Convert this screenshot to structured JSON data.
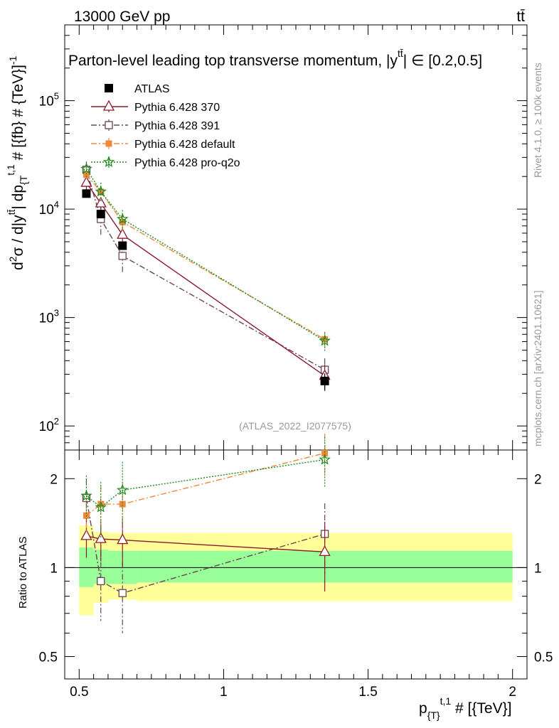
{
  "header": {
    "left": "13000 GeV pp",
    "right": "tt̄"
  },
  "side_labels": {
    "rivet": "Rivet 4.1.0, ≥ 100k events",
    "mcplots": "mcplots.cern.ch [arXiv:2401.10621]"
  },
  "colors": {
    "atlas": "#000000",
    "p370": "#8b1a2e",
    "p391": "#6b4356",
    "pdefault": "#f2883a",
    "pq2o": "#1a8a1a",
    "band_outer": "#ffff99",
    "band_inner": "#99ff99"
  },
  "chart_data": [
    {
      "type": "line",
      "title": "Parton-level leading top transverse momentum, |y^{tt̄}| ∈ [0.2,0.5]",
      "title_text": "Parton-level leading top transverse momentum, |y",
      "title_sup": "tt̄",
      "title_tail": "| ∈ [0.2,0.5]",
      "ylabel": "d²σ / d|y^{tt̄}| dp_{T}^{t,1} # [{fb} # {TeV}]^{-1}",
      "ylabel_parts": [
        "d",
        "2",
        "σ / d|y",
        "tt̄",
        "| dp",
        "{T",
        "t,1",
        " # [{fb} # {TeV}]",
        "-1"
      ],
      "yscale": "log",
      "ylim": [
        60,
        500000
      ],
      "xlim": [
        0.45,
        2.05
      ],
      "yticks": [
        {
          "v": 100,
          "b": "10",
          "e": "2"
        },
        {
          "v": 1000,
          "b": "10",
          "e": "3"
        },
        {
          "v": 10000,
          "b": "10",
          "e": "4"
        },
        {
          "v": 100000,
          "b": "10",
          "e": "5"
        }
      ],
      "watermark": "(ATLAS_2022_I2077575)",
      "legend_position": "top-left",
      "series": [
        {
          "key": "atlas",
          "name": "ATLAS",
          "marker": "square-filled",
          "line": "none",
          "x": [
            0.525,
            0.575,
            0.65,
            1.35
          ],
          "y": [
            13900,
            9000,
            4600,
            260
          ],
          "yerr_lo": [
            700,
            500,
            300,
            45
          ],
          "yerr_hi": [
            700,
            500,
            300,
            45
          ]
        },
        {
          "key": "p370",
          "name": "Pythia 6.428 370",
          "marker": "triangle-open",
          "line": "solid",
          "x": [
            0.525,
            0.575,
            0.65,
            1.35
          ],
          "y": [
            17500,
            11300,
            5800,
            290
          ],
          "yerr_lo": [
            2500,
            1500,
            900,
            80
          ],
          "yerr_hi": [
            2500,
            1500,
            900,
            80
          ]
        },
        {
          "key": "p391",
          "name": "Pythia 6.428 391",
          "marker": "square-open",
          "line": "dashdot",
          "x": [
            0.525,
            0.575,
            0.65,
            1.35
          ],
          "y": [
            23000,
            8100,
            3700,
            330
          ],
          "yerr_lo": [
            4000,
            2500,
            1100,
            90
          ],
          "yerr_hi": [
            4000,
            2500,
            1100,
            90
          ]
        },
        {
          "key": "pdefault",
          "name": "Pythia 6.428 default",
          "marker": "square-filled-small",
          "line": "dashdot",
          "x": [
            0.525,
            0.575,
            0.65,
            1.35
          ],
          "y": [
            20800,
            14400,
            7600,
            630
          ],
          "yerr_lo": [
            2500,
            2000,
            1300,
            110
          ],
          "yerr_hi": [
            2500,
            2000,
            1300,
            110
          ]
        },
        {
          "key": "pq2o",
          "name": "Pythia 6.428 pro-q2o",
          "marker": "star",
          "line": "dotted",
          "x": [
            0.525,
            0.575,
            0.65,
            1.35
          ],
          "y": [
            23500,
            14500,
            8100,
            610
          ],
          "yerr_lo": [
            4000,
            3000,
            1700,
            120
          ],
          "yerr_hi": [
            4000,
            3000,
            1700,
            120
          ]
        }
      ]
    },
    {
      "type": "line",
      "title": "",
      "ylabel": "Ratio to ATLAS",
      "xlabel": "p_{T}^{t,1} # [{TeV}]",
      "xlabel_parts": [
        "p",
        "{T",
        "}",
        "t,1",
        " # [{TeV}]"
      ],
      "yscale": "log",
      "ylim": [
        0.42,
        2.5
      ],
      "xlim": [
        0.45,
        2.05
      ],
      "yticks": [
        {
          "v": 0.5,
          "label": "0.5"
        },
        {
          "v": 1,
          "label": "1"
        },
        {
          "v": 2,
          "label": "2"
        }
      ],
      "xticks": [
        {
          "v": 0.5,
          "label": "0.5"
        },
        {
          "v": 1,
          "label": "1"
        },
        {
          "v": 1.5,
          "label": "1.5"
        },
        {
          "v": 2,
          "label": "2"
        }
      ],
      "bands": [
        {
          "x0": 0.5,
          "x1": 0.55,
          "outer": [
            0.69,
            1.39
          ],
          "inner": [
            0.86,
            1.17
          ]
        },
        {
          "x0": 0.55,
          "x1": 0.6,
          "outer": [
            0.76,
            1.32
          ],
          "inner": [
            0.88,
            1.15
          ]
        },
        {
          "x0": 0.6,
          "x1": 0.7,
          "outer": [
            0.78,
            1.31
          ],
          "inner": [
            0.88,
            1.14
          ]
        },
        {
          "x0": 0.7,
          "x1": 2.0,
          "outer": [
            0.77,
            1.31
          ],
          "inner": [
            0.89,
            1.14
          ]
        }
      ],
      "series": [
        {
          "key": "p370",
          "x": [
            0.525,
            0.575,
            0.65,
            1.35
          ],
          "y": [
            1.28,
            1.25,
            1.24,
            1.13
          ],
          "yerr_lo": [
            0.2,
            0.2,
            0.23,
            0.3
          ],
          "yerr_hi": [
            0.2,
            0.2,
            0.23,
            0.3
          ]
        },
        {
          "key": "p391",
          "x": [
            0.525,
            0.575,
            0.65,
            1.35
          ],
          "y": [
            1.72,
            0.9,
            0.82,
            1.3
          ],
          "yerr_lo": [
            0.28,
            0.24,
            0.22,
            0.35
          ],
          "yerr_hi": [
            0.28,
            0.24,
            0.22,
            0.35
          ]
        },
        {
          "key": "pdefault",
          "x": [
            0.525,
            0.575,
            0.65,
            1.35
          ],
          "y": [
            1.5,
            1.64,
            1.64,
            2.44
          ],
          "yerr_lo": [
            0.2,
            0.25,
            0.3,
            0.4
          ],
          "yerr_hi": [
            0.2,
            0.25,
            0.3,
            0.4
          ]
        },
        {
          "key": "pq2o",
          "x": [
            0.525,
            0.575,
            0.65,
            1.35
          ],
          "y": [
            1.75,
            1.6,
            1.83,
            2.32
          ],
          "yerr_lo": [
            0.3,
            0.35,
            0.45,
            0.45
          ],
          "yerr_hi": [
            0.3,
            0.35,
            0.45,
            0.45
          ]
        }
      ]
    }
  ]
}
